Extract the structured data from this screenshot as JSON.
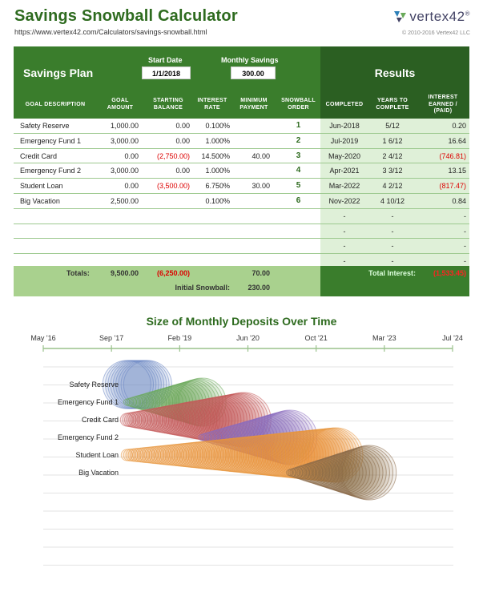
{
  "header": {
    "title": "Savings Snowball Calculator",
    "url": "https://www.vertex42.com/Calculators/savings-snowball.html",
    "logo_text": "vertex42",
    "logo_tm": "®",
    "copyright": "© 2010-2016 Vertex42 LLC"
  },
  "plan": {
    "title": "Savings Plan",
    "start_date_label": "Start Date",
    "start_date": "1/1/2018",
    "monthly_savings_label": "Monthly Savings",
    "monthly_savings": "300.00",
    "results_title": "Results"
  },
  "columns": [
    "GOAL DESCRIPTION",
    "GOAL AMOUNT",
    "STARTING BALANCE",
    "INTEREST RATE",
    "MINIMUM PAYMENT",
    "SNOWBALL ORDER",
    "COMPLETED",
    "YEARS TO COMPLETE",
    "INTEREST EARNED / (PAID)"
  ],
  "rows": [
    {
      "desc": "Safety Reserve",
      "goal": "1,000.00",
      "start": "0.00",
      "rate": "0.100%",
      "minpay": "",
      "order": "1",
      "completed": "Jun-2018",
      "years": "5/12",
      "interest": "0.20",
      "start_neg": false,
      "int_neg": false
    },
    {
      "desc": "Emergency Fund 1",
      "goal": "3,000.00",
      "start": "0.00",
      "rate": "1.000%",
      "minpay": "",
      "order": "2",
      "completed": "Jul-2019",
      "years": "1 6/12",
      "interest": "16.64",
      "start_neg": false,
      "int_neg": false
    },
    {
      "desc": "Credit Card",
      "goal": "0.00",
      "start": "(2,750.00)",
      "rate": "14.500%",
      "minpay": "40.00",
      "order": "3",
      "completed": "May-2020",
      "years": "2 4/12",
      "interest": "(746.81)",
      "start_neg": true,
      "int_neg": true
    },
    {
      "desc": "Emergency Fund 2",
      "goal": "3,000.00",
      "start": "0.00",
      "rate": "1.000%",
      "minpay": "",
      "order": "4",
      "completed": "Apr-2021",
      "years": "3 3/12",
      "interest": "13.15",
      "start_neg": false,
      "int_neg": false
    },
    {
      "desc": "Student Loan",
      "goal": "0.00",
      "start": "(3,500.00)",
      "rate": "6.750%",
      "minpay": "30.00",
      "order": "5",
      "completed": "Mar-2022",
      "years": "4 2/12",
      "interest": "(817.47)",
      "start_neg": true,
      "int_neg": true
    },
    {
      "desc": "Big Vacation",
      "goal": "2,500.00",
      "start": "",
      "rate": "0.100%",
      "minpay": "",
      "order": "6",
      "completed": "Nov-2022",
      "years": "4 10/12",
      "interest": "0.84",
      "start_neg": false,
      "int_neg": false
    },
    {
      "desc": "",
      "goal": "",
      "start": "",
      "rate": "",
      "minpay": "",
      "order": "",
      "completed": "-",
      "years": "-",
      "interest": "-",
      "start_neg": false,
      "int_neg": false
    },
    {
      "desc": "",
      "goal": "",
      "start": "",
      "rate": "",
      "minpay": "",
      "order": "",
      "completed": "-",
      "years": "-",
      "interest": "-",
      "start_neg": false,
      "int_neg": false
    },
    {
      "desc": "",
      "goal": "",
      "start": "",
      "rate": "",
      "minpay": "",
      "order": "",
      "completed": "-",
      "years": "-",
      "interest": "-",
      "start_neg": false,
      "int_neg": false
    },
    {
      "desc": "",
      "goal": "",
      "start": "",
      "rate": "",
      "minpay": "",
      "order": "",
      "completed": "-",
      "years": "-",
      "interest": "-",
      "start_neg": false,
      "int_neg": false
    }
  ],
  "totals": {
    "label": "Totals:",
    "goal": "9,500.00",
    "start": "(6,250.00)",
    "minpay": "70.00",
    "initial_snowball_label": "Initial Snowball:",
    "initial_snowball": "230.00",
    "total_interest_label": "Total Interest:",
    "total_interest": "(1,533.45)"
  },
  "colors": {
    "green": "#3a7d2c",
    "dark_green": "#2b5f22",
    "light_green": "#a9d18e",
    "results_bg": "#dff0d8",
    "negative": "#dd0000"
  },
  "chart_data": {
    "type": "scatter",
    "title": "Size of Monthly Deposits Over Time",
    "x_ticks": [
      "May '16",
      "Sep '17",
      "Feb '19",
      "Jun '20",
      "Oct '21",
      "Mar '23",
      "Jul '24"
    ],
    "categories": [
      "Safety Reserve",
      "Emergency Fund 1",
      "Credit Card",
      "Emergency Fund 2",
      "Student Loan",
      "Big Vacation"
    ],
    "series": [
      {
        "name": "Safety Reserve",
        "color": "#6b86c4",
        "start": "2018-01",
        "end": "2018-06",
        "deposit_start": 260,
        "deposit_end": 260
      },
      {
        "name": "Emergency Fund 1",
        "color": "#6aaa5a",
        "start": "2018-01",
        "end": "2019-07",
        "deposit_start": 0,
        "deposit_end": 260
      },
      {
        "name": "Credit Card",
        "color": "#c45a5a",
        "start": "2018-01",
        "end": "2020-05",
        "deposit_start": 40,
        "deposit_end": 300
      },
      {
        "name": "Emergency Fund 2",
        "color": "#8b6bbf",
        "start": "2019-07",
        "end": "2021-04",
        "deposit_start": 0,
        "deposit_end": 300
      },
      {
        "name": "Student Loan",
        "color": "#e8963c",
        "start": "2018-01",
        "end": "2022-03",
        "deposit_start": 30,
        "deposit_end": 300
      },
      {
        "name": "Big Vacation",
        "color": "#8a6a48",
        "start": "2021-04",
        "end": "2022-11",
        "deposit_start": 0,
        "deposit_end": 300
      }
    ]
  }
}
